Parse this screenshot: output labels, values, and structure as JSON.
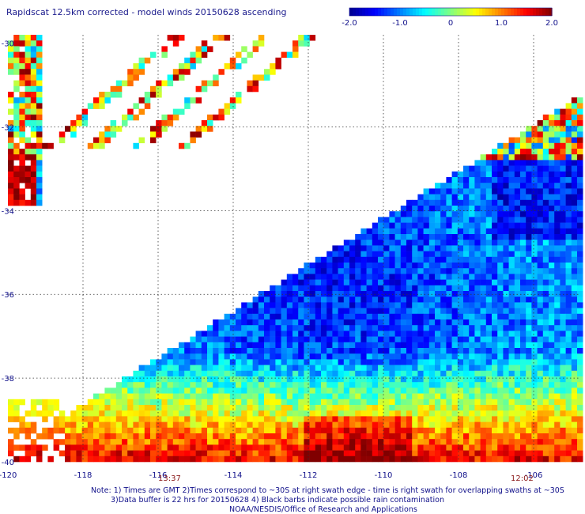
{
  "title": "Rapidscat 12.5km corrected - model winds 20150628 ascending",
  "colorbar": {
    "min": -2.0,
    "max": 2.0,
    "tick_labels": [
      "-2.0",
      "-1.0",
      "0",
      "1.0",
      "2.0"
    ],
    "tick_values": [
      -2.0,
      -1.0,
      0,
      1.0,
      2.0
    ],
    "colors": [
      "#00008f",
      "#0000ff",
      "#0080ff",
      "#00ffff",
      "#80ff80",
      "#ffff00",
      "#ff8000",
      "#ff0000",
      "#800000"
    ]
  },
  "map": {
    "lon_range": [
      -120,
      -104.8
    ],
    "lat_range": [
      -40,
      -29.8
    ],
    "x_tick_values": [
      -120,
      -118,
      -116,
      -114,
      -112,
      -110,
      -108,
      -106
    ],
    "x_tick_labels": [
      "-120",
      "-118",
      "-116",
      "-114",
      "-112",
      "-110",
      "-108",
      "-106"
    ],
    "y_tick_values": [
      -30,
      -32,
      -34,
      -36,
      -38,
      -40
    ],
    "y_tick_labels": [
      "-30",
      "-32",
      "-34",
      "-36",
      "-38",
      "-40"
    ]
  },
  "swath_times": [
    {
      "label": "13:37",
      "lon": -115.9
    },
    {
      "label": "12:02",
      "lon": -106.6
    }
  ],
  "notes": {
    "line1": "Note: 1) Times are GMT 2)Times correspond to ~30S at right swath edge - time is right swath for overlapping swaths at ~30S",
    "line2": "3)Data buffer is 22 hrs for 20150628 4) Black barbs indicate possible rain contamination",
    "line3": "NOAA/NESDIS/Office of Research and Applications"
  }
}
